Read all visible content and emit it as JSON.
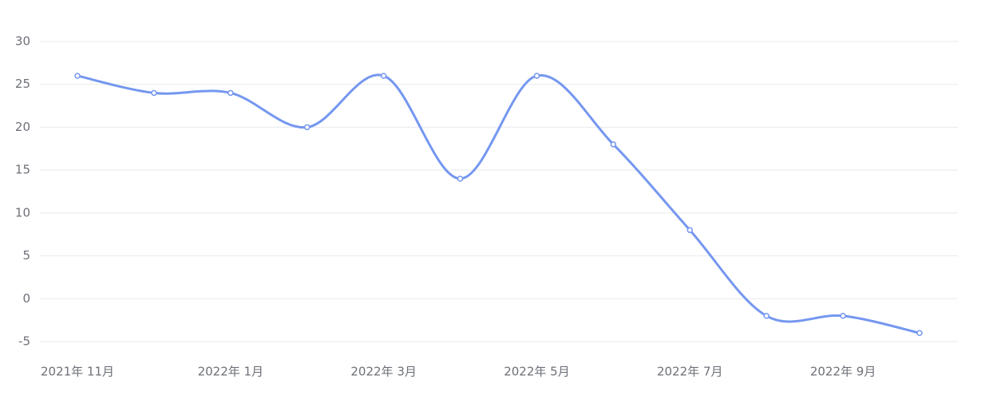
{
  "chart_data": {
    "type": "line",
    "categories": [
      "2021年 11月",
      null,
      "2022年 1月",
      null,
      "2022年 3月",
      null,
      "2022年 5月",
      null,
      "2022年 7月",
      null,
      "2022年 9月",
      null
    ],
    "series": [
      {
        "color": "#7597f0",
        "values": [
          26,
          24,
          24,
          20,
          26,
          14,
          26,
          18,
          8,
          -2,
          -2,
          -4
        ]
      }
    ],
    "ylim": [
      -5,
      30
    ],
    "yticks": [
      -5,
      0,
      5,
      10,
      15,
      20,
      25,
      30
    ],
    "grid": true,
    "smooth": true
  }
}
